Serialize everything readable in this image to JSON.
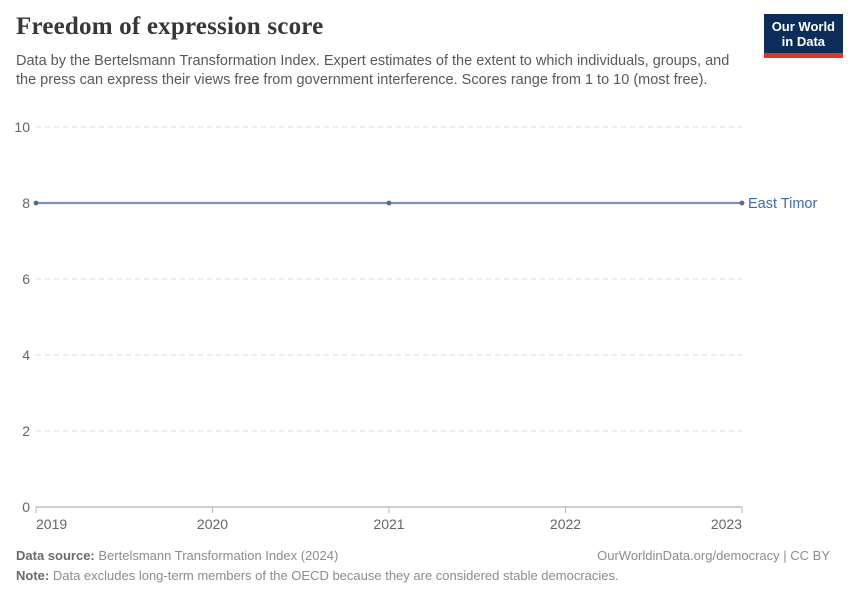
{
  "header": {
    "title": "Freedom of expression score",
    "subtitle": "Data by the Bertelsmann Transformation Index. Expert estimates of the extent to which individuals, groups, and the press can express their views free from government interference. Scores range from 1 to 10 (most free).",
    "logo": {
      "line1": "Our World",
      "line2": "in Data"
    }
  },
  "chart_data": {
    "type": "line",
    "title": "Freedom of expression score",
    "x": [
      2019,
      2021,
      2023
    ],
    "series": [
      {
        "name": "East Timor",
        "values": [
          8,
          8,
          8
        ]
      }
    ],
    "xlabel": "",
    "ylabel": "",
    "xlim": [
      2019,
      2023
    ],
    "ylim": [
      0,
      10
    ],
    "xticks": [
      2019,
      2020,
      2021,
      2022,
      2023
    ],
    "yticks": [
      0,
      2,
      4,
      6,
      8,
      10
    ],
    "grid": "horizontal-dashed",
    "legend_position": "end-of-line-label"
  },
  "colors": {
    "line": "#7b91b7",
    "marker": "#4c6a9c",
    "series_label": "#3d6bb3",
    "grid": "#dedede",
    "axis": "#9e9e9e",
    "tick": "#b5b5b5",
    "tick_label": "#666666",
    "logo_bg": "#0c2d5a",
    "logo_bar": "#dc352a"
  },
  "footer": {
    "source_label": "Data source:",
    "source_text": "Bertelsmann Transformation Index (2024)",
    "note_label": "Note:",
    "note_text": "Data excludes long-term members of the OECD because they are considered stable democracies.",
    "link": "OurWorldinData.org/democracy | CC BY"
  }
}
